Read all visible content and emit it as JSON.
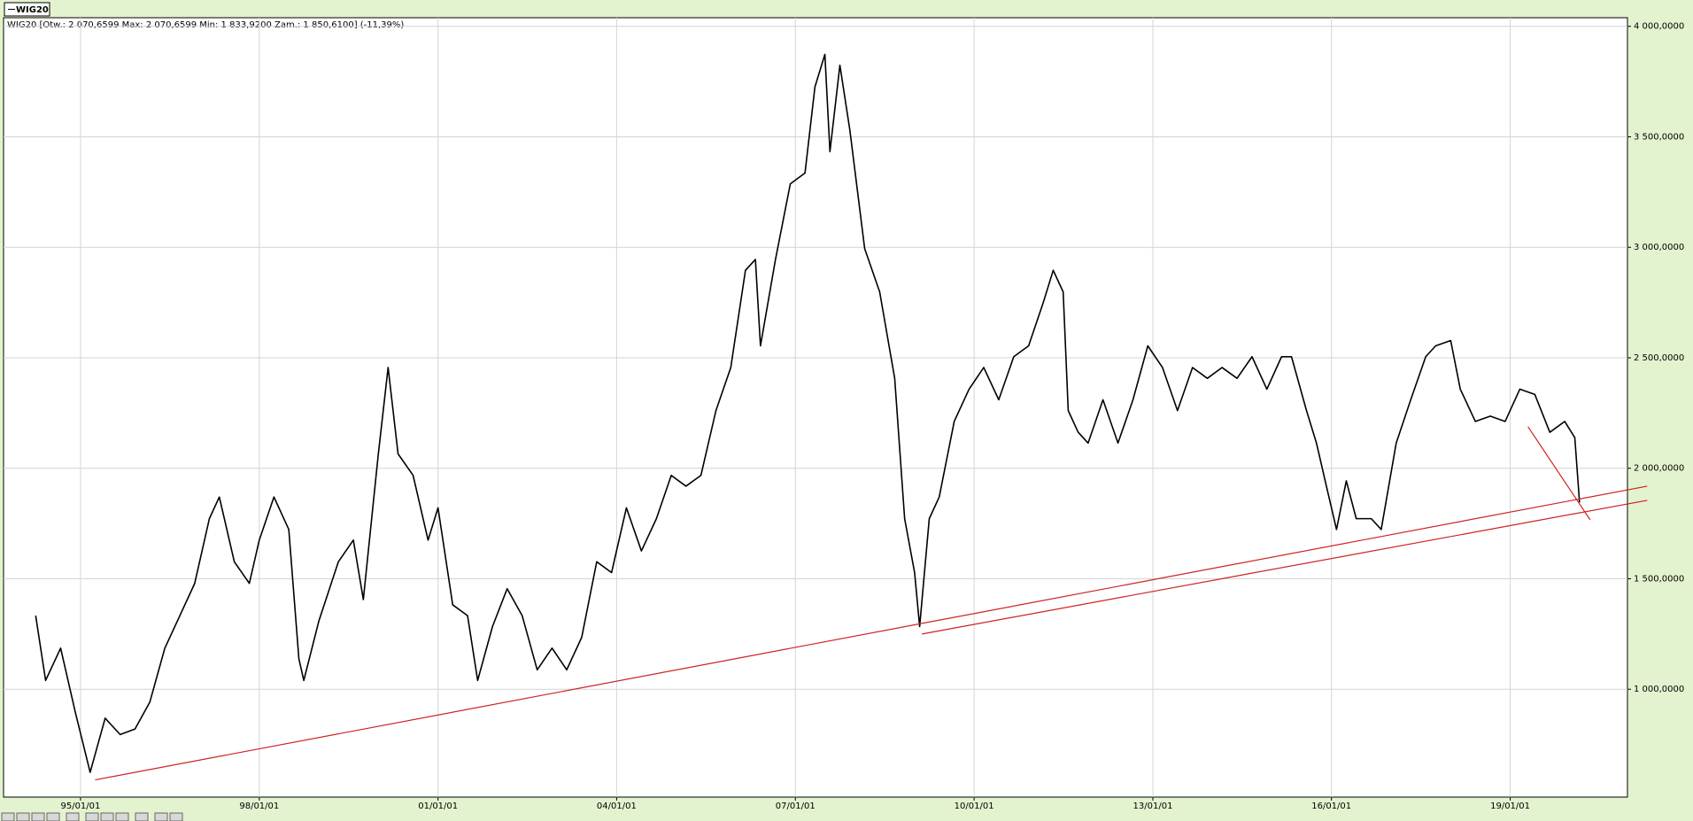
{
  "chart_data": {
    "type": "line",
    "tab_title": "WIG20",
    "info": "WIG20 [Otw.: 2 070,6599  Max: 2 070,6599  Min: 1 833,9200  Zam.: 1 850,6100] (-11,39%)",
    "x": [
      "1994-04-01",
      "1994-06-01",
      "1994-09-01",
      "1994-12-01",
      "1995-03-01",
      "1995-06-01",
      "1995-09-01",
      "1995-12-01",
      "1996-03-01",
      "1996-06-01",
      "1996-09-01",
      "1996-12-01",
      "1997-03-01",
      "1997-05-01",
      "1997-08-01",
      "1997-11-01",
      "1998-01-01",
      "1998-04-01",
      "1998-07-01",
      "1998-09-01",
      "1998-10-01",
      "1999-01-01",
      "1999-05-01",
      "1999-08-01",
      "1999-10-01",
      "2000-01-01",
      "2000-03-01",
      "2000-05-01",
      "2000-08-01",
      "2000-11-01",
      "2001-01-01",
      "2001-04-01",
      "2001-07-01",
      "2001-09-01",
      "2001-12-01",
      "2002-03-01",
      "2002-06-01",
      "2002-09-01",
      "2002-12-01",
      "2003-03-01",
      "2003-06-01",
      "2003-09-01",
      "2003-12-01",
      "2004-03-01",
      "2004-06-01",
      "2004-09-01",
      "2004-12-01",
      "2005-03-01",
      "2005-06-01",
      "2005-09-01",
      "2005-12-01",
      "2006-03-01",
      "2006-05-01",
      "2006-06-01",
      "2006-09-01",
      "2006-12-01",
      "2007-03-01",
      "2007-05-01",
      "2007-07-01",
      "2007-08-01",
      "2007-10-01",
      "2007-12-01",
      "2008-03-01",
      "2008-06-01",
      "2008-09-01",
      "2008-11-01",
      "2009-01-01",
      "2009-02-01",
      "2009-04-01",
      "2009-06-01",
      "2009-09-01",
      "2009-12-01",
      "2010-03-01",
      "2010-06-01",
      "2010-09-01",
      "2010-12-01",
      "2011-03-01",
      "2011-05-01",
      "2011-07-01",
      "2011-08-01",
      "2011-10-01",
      "2011-12-01",
      "2012-03-01",
      "2012-06-01",
      "2012-09-01",
      "2012-12-01",
      "2013-03-01",
      "2013-06-01",
      "2013-09-01",
      "2013-12-01",
      "2014-03-01",
      "2014-06-01",
      "2014-09-01",
      "2014-12-01",
      "2015-03-01",
      "2015-05-01",
      "2015-08-01",
      "2015-10-01",
      "2015-12-01",
      "2016-02-01",
      "2016-04-01",
      "2016-06-01",
      "2016-09-01",
      "2016-11-01",
      "2017-02-01",
      "2017-05-01",
      "2017-08-01",
      "2017-10-01",
      "2018-01-01",
      "2018-03-01",
      "2018-06-01",
      "2018-09-01",
      "2018-12-01",
      "2019-03-01",
      "2019-06-01",
      "2019-09-01",
      "2019-12-01",
      "2020-02-01",
      "2020-03-01"
    ],
    "series": [
      {
        "name": "WIG20",
        "color": "#000000",
        "values": [
          1333,
          1040,
          1186,
          893,
          624,
          869,
          795,
          820,
          942,
          1186,
          1333,
          1479,
          1772,
          1870,
          1577,
          1479,
          1675,
          1870,
          1723,
          1137,
          1040,
          1308,
          1577,
          1675,
          1406,
          2065,
          2456,
          2065,
          1968,
          1675,
          1821,
          1382,
          1333,
          1040,
          1284,
          1455,
          1333,
          1088,
          1186,
          1088,
          1235,
          1577,
          1528,
          1821,
          1626,
          1772,
          1968,
          1919,
          1968,
          2261,
          2456,
          2896,
          2945,
          2554,
          2945,
          3287,
          3336,
          3726,
          3873,
          3433,
          3824,
          3531,
          2994,
          2798,
          2407,
          1772,
          1528,
          1284,
          1772,
          1870,
          2212,
          2358,
          2456,
          2310,
          2505,
          2554,
          2750,
          2896,
          2798,
          2261,
          2163,
          2114,
          2310,
          2114,
          2310,
          2554,
          2456,
          2261,
          2456,
          2407,
          2456,
          2407,
          2505,
          2358,
          2505,
          2505,
          2261,
          2114,
          1919,
          1723,
          1943,
          1772,
          1772,
          1723,
          2114,
          2310,
          2505,
          2554,
          2578,
          2358,
          2212,
          2236,
          2212,
          2358,
          2334,
          2163,
          2212,
          2139,
          1846
        ]
      }
    ],
    "trendlines": [
      {
        "color": "#cc2222",
        "x": [
          "1995-04-01",
          "2021-04-20"
        ],
        "y": [
          590,
          1919
        ]
      },
      {
        "color": "#cc2222",
        "x": [
          "2009-02-15",
          "2021-04-20"
        ],
        "y": [
          1250,
          1855
        ]
      },
      {
        "color": "#cc2222",
        "x": [
          "2019-04-20",
          "2020-05-05"
        ],
        "y": [
          2188,
          1767
        ]
      }
    ],
    "xlim": [
      "1993-09-16",
      "2020-12-20"
    ],
    "xticks": [
      {
        "value": "1995-01-01",
        "label": "95/01/01"
      },
      {
        "value": "1998-01-01",
        "label": "98/01/01"
      },
      {
        "value": "2001-01-01",
        "label": "01/01/01"
      },
      {
        "value": "2004-01-01",
        "label": "04/01/01"
      },
      {
        "value": "2007-01-01",
        "label": "07/01/01"
      },
      {
        "value": "2010-01-01",
        "label": "10/01/01"
      },
      {
        "value": "2013-01-01",
        "label": "13/01/01"
      },
      {
        "value": "2016-01-01",
        "label": "16/01/01"
      },
      {
        "value": "2019-01-01",
        "label": "19/01/01"
      }
    ],
    "ylim": [
      512,
      4039
    ],
    "yticks": [
      {
        "value": 1000,
        "label": "1 000,0000"
      },
      {
        "value": 1500,
        "label": "1 500,0000"
      },
      {
        "value": 2000,
        "label": "2 000,0000"
      },
      {
        "value": 2500,
        "label": "2 500,0000"
      },
      {
        "value": 3000,
        "label": "3 000,0000"
      },
      {
        "value": 3500,
        "label": "3 500,0000"
      },
      {
        "value": 4000,
        "label": "4 000,0000"
      }
    ],
    "grid": true
  }
}
